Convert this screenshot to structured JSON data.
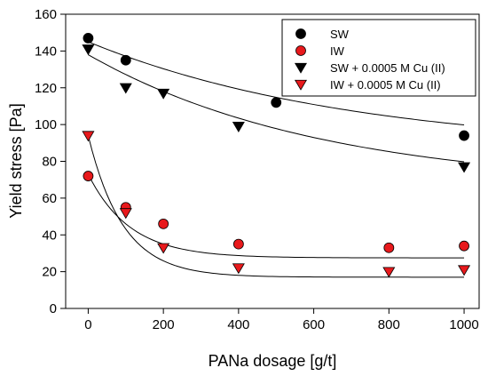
{
  "chart_data": {
    "type": "scatter",
    "xlabel": "PANa dosage [g/t]",
    "ylabel": "Yield stress [Pa]",
    "xlim": [
      -60,
      1040
    ],
    "ylim": [
      0,
      160
    ],
    "xticks": [
      0,
      200,
      400,
      600,
      800,
      1000
    ],
    "yticks": [
      0,
      20,
      40,
      60,
      80,
      100,
      120,
      140,
      160
    ],
    "legend_position": "top-right",
    "grid": false,
    "series": [
      {
        "name": "SW",
        "marker": "circle",
        "color": "#000000",
        "x": [
          0,
          100,
          500,
          1000
        ],
        "y": [
          147,
          135,
          112,
          94
        ],
        "fit": {
          "a": 85,
          "b": 60,
          "k": 0.0014
        }
      },
      {
        "name": "IW",
        "marker": "circle",
        "color": "#e8191c",
        "x": [
          0,
          100,
          200,
          400,
          800,
          1000
        ],
        "y": [
          72,
          55,
          46,
          35,
          33,
          34
        ],
        "fit": {
          "a": 27.5,
          "b": 45.5,
          "k": 0.009
        }
      },
      {
        "name": "SW + 0.0005 M Cu (II)",
        "marker": "triangle-down",
        "color": "#000000",
        "x": [
          0,
          100,
          200,
          400,
          1000
        ],
        "y": [
          141,
          120,
          117,
          99,
          77
        ],
        "fit": {
          "a": 65,
          "b": 73,
          "k": 0.0016
        }
      },
      {
        "name": "IW + 0.0005 M Cu (II)",
        "marker": "triangle-down",
        "color": "#e8191c",
        "x": [
          0,
          100,
          200,
          400,
          800,
          1000
        ],
        "y": [
          94,
          52,
          33,
          22,
          20,
          21
        ],
        "fit": {
          "a": 17,
          "b": 77,
          "k": 0.0108
        }
      }
    ]
  }
}
